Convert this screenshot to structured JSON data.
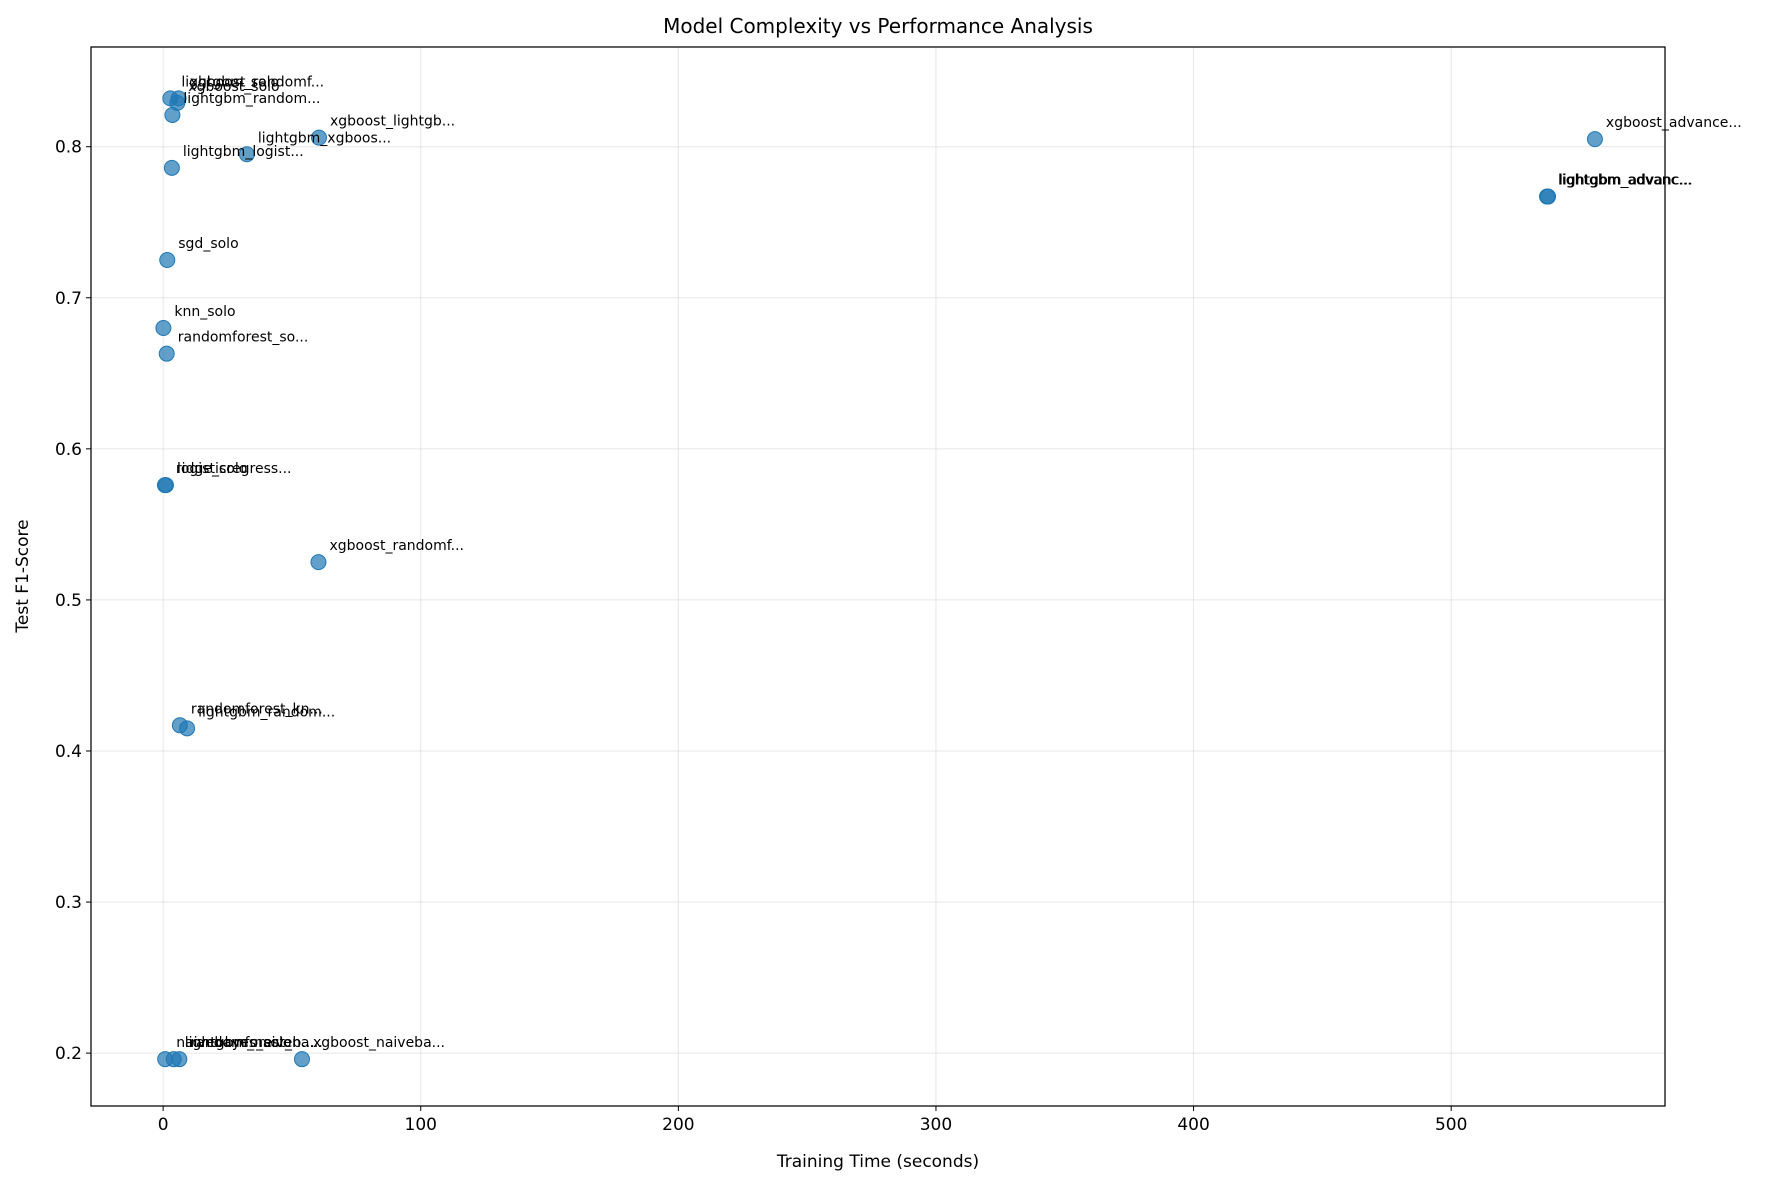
{
  "chart_data": {
    "type": "scatter",
    "title": "Model Complexity vs Performance Analysis",
    "xlabel": "Training Time (seconds)",
    "ylabel": "Test F1-Score",
    "xlim": [
      -28,
      583
    ],
    "ylim": [
      0.165,
      0.866
    ],
    "xticks": [
      0,
      100,
      200,
      300,
      400,
      500
    ],
    "yticks": [
      0.2,
      0.3,
      0.4,
      0.5,
      0.6,
      0.7,
      0.8
    ],
    "grid": true,
    "point_color": "#1f77b4",
    "points": [
      {
        "x": 2.8,
        "y": 0.832,
        "label": "lightgbm_solo"
      },
      {
        "x": 6.0,
        "y": 0.832,
        "label": "xgboost_randomf..."
      },
      {
        "x": 5.5,
        "y": 0.829,
        "label": "xgboost_solo"
      },
      {
        "x": 3.6,
        "y": 0.821,
        "label": "lightgbm_random..."
      },
      {
        "x": 60.5,
        "y": 0.806,
        "label": "xgboost_lightgb..."
      },
      {
        "x": 32.5,
        "y": 0.795,
        "label": "lightgbm_xgboos..."
      },
      {
        "x": 3.4,
        "y": 0.786,
        "label": "lightgbm_logist..."
      },
      {
        "x": 555.8,
        "y": 0.805,
        "label": "xgboost_advance..."
      },
      {
        "x": 537.2,
        "y": 0.767,
        "label": "lightgbm_advanc..."
      },
      {
        "x": 537.6,
        "y": 0.767,
        "label": "lightgbm_advanc..."
      },
      {
        "x": 1.6,
        "y": 0.725,
        "label": "sgd_solo"
      },
      {
        "x": 0.1,
        "y": 0.68,
        "label": "knn_solo"
      },
      {
        "x": 1.4,
        "y": 0.663,
        "label": "randomforest_so..."
      },
      {
        "x": 0.7,
        "y": 0.576,
        "label": "ridge_solo"
      },
      {
        "x": 1.1,
        "y": 0.576,
        "label": "logisticregress..."
      },
      {
        "x": 60.3,
        "y": 0.525,
        "label": "xgboost_randomf..."
      },
      {
        "x": 6.5,
        "y": 0.417,
        "label": "randomforest_kn..."
      },
      {
        "x": 9.3,
        "y": 0.415,
        "label": "lightgbm_random..."
      },
      {
        "x": 0.8,
        "y": 0.196,
        "label": "naivebayes_solo"
      },
      {
        "x": 4.1,
        "y": 0.196,
        "label": "lightgbm_naiveb..."
      },
      {
        "x": 6.3,
        "y": 0.196,
        "label": "randomforest_na..."
      },
      {
        "x": 53.9,
        "y": 0.196,
        "label": "xgboost_naiveba..."
      }
    ]
  }
}
